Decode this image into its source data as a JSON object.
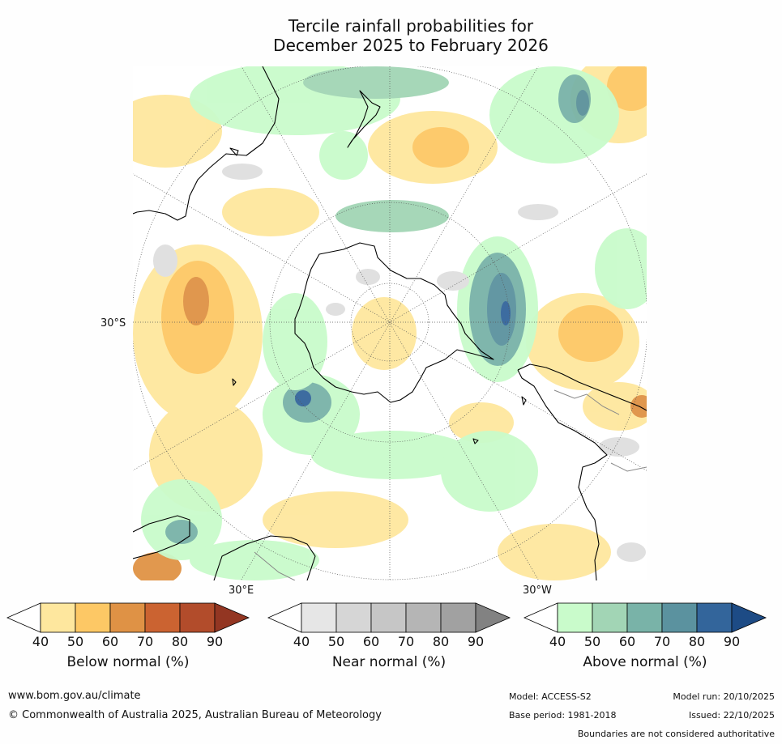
{
  "title": {
    "line1": "Tercile rainfall probabilities for",
    "line2": "December 2025 to February 2026"
  },
  "map": {
    "projection": "south polar stereographic",
    "labels": {
      "lat_30s": "30°S",
      "lon_30e": "30°E",
      "lon_30w": "30°W"
    }
  },
  "colorbars": [
    {
      "title": "Below normal (%)",
      "ticks": [
        "40",
        "50",
        "60",
        "70",
        "80",
        "90"
      ],
      "colors": [
        "#ffffff",
        "#fee79e",
        "#fdc865",
        "#df9245",
        "#cb6331",
        "#b24c2b",
        "#933622"
      ]
    },
    {
      "title": "Near normal (%)",
      "ticks": [
        "40",
        "50",
        "60",
        "70",
        "80",
        "90"
      ],
      "colors": [
        "#ffffff",
        "#e6e6e6",
        "#d6d6d6",
        "#c6c6c6",
        "#b5b5b5",
        "#a1a1a1",
        "#828282"
      ]
    },
    {
      "title": "Above normal (%)",
      "ticks": [
        "40",
        "50",
        "60",
        "70",
        "80",
        "90"
      ],
      "colors": [
        "#ffffff",
        "#c9fbcb",
        "#a2d5b5",
        "#79b3a8",
        "#5b929f",
        "#33659b",
        "#1d4b85"
      ]
    }
  ],
  "footer": {
    "website": "www.bom.gov.au/climate",
    "copyright": "© Commonwealth of Australia 2025, Australian Bureau of Meteorology",
    "model": "Model: ACCESS-S2",
    "base_period": "Base period: 1981-2018",
    "model_run": "Model run: 20/10/2025",
    "issued": "Issued: 22/10/2025",
    "disclaimer": "Boundaries are not considered authoritative"
  }
}
